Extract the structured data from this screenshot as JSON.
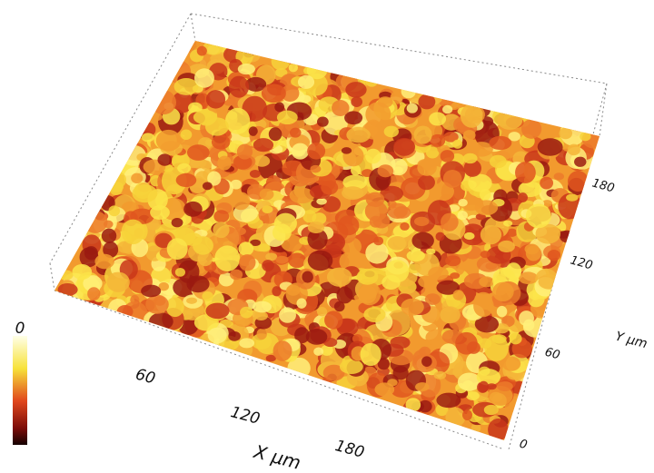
{
  "x_axis": {
    "label": "X µm",
    "ticks": [
      60,
      120,
      180
    ]
  },
  "y_axis": {
    "label": "Y µm",
    "ticks": [
      0,
      60,
      120,
      180
    ]
  },
  "z_scale": {
    "label": "0"
  }
}
